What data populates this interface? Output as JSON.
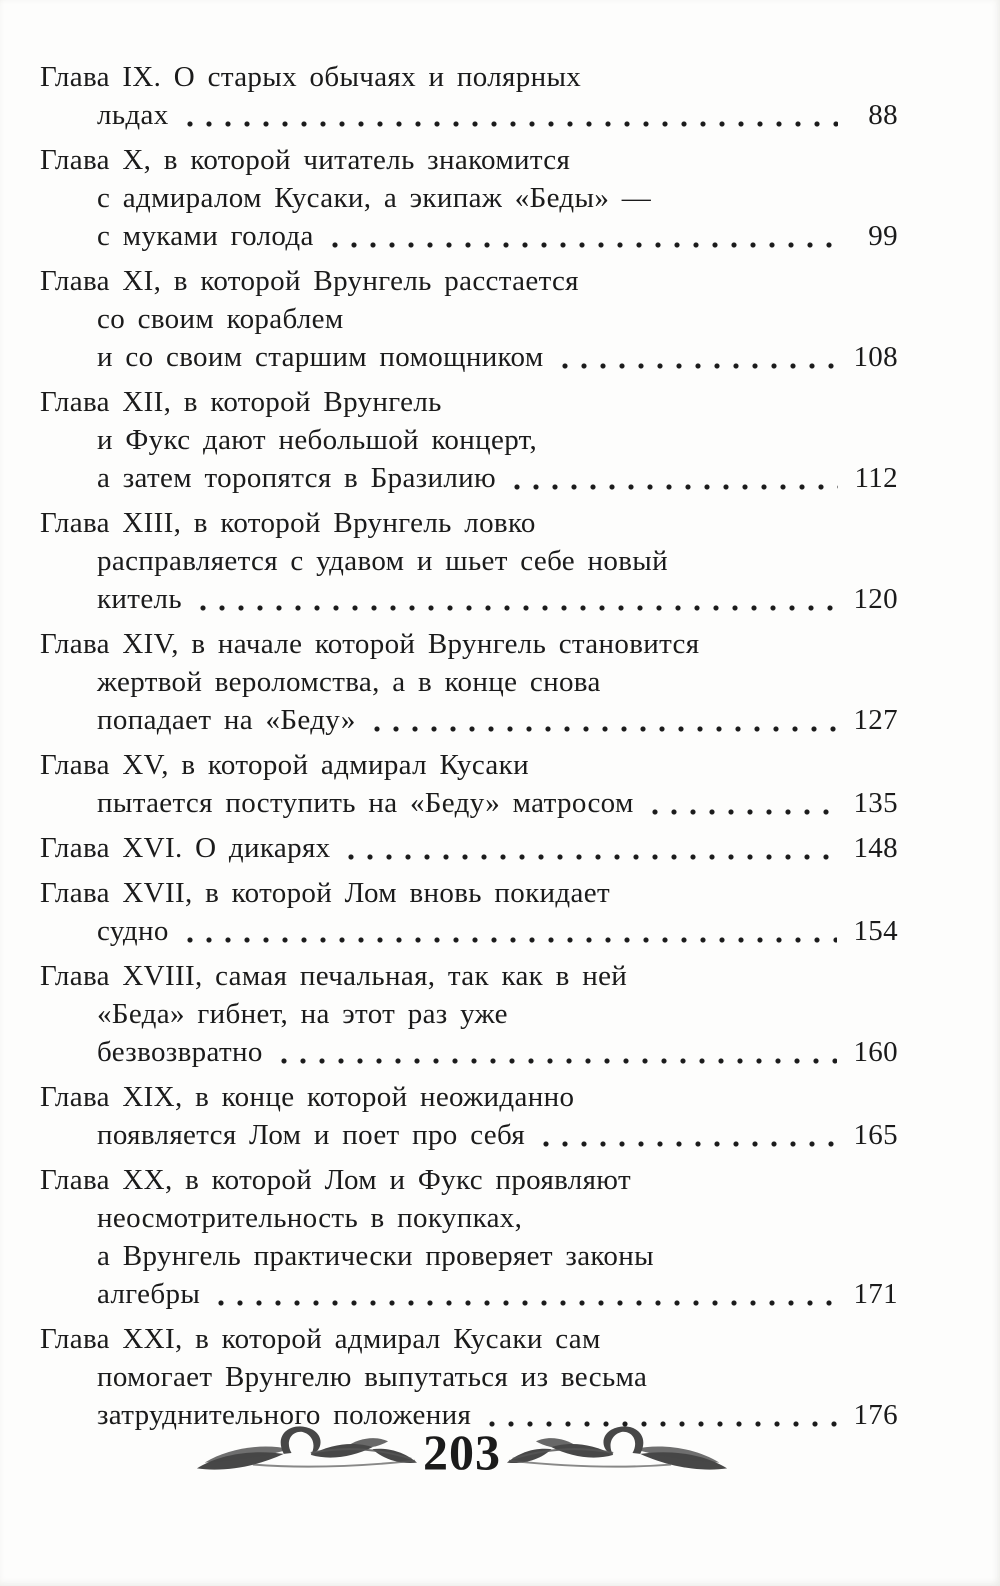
{
  "colors": {
    "ink": "#1b1b1b",
    "ornament": "#474747",
    "paper": "#fdfdfc"
  },
  "toc": {
    "entries": [
      {
        "lines": [
          "Глава IX. О старых обычаях и полярных"
        ],
        "last_line": "льдах",
        "page": "88"
      },
      {
        "lines": [
          "Глава X, в которой читатель знакомится",
          "с адмиралом Кусаки, а экипаж «Беды» —"
        ],
        "last_line": "с муками голода",
        "page": "99"
      },
      {
        "lines": [
          "Глава XI, в которой Врунгель расстается",
          "со своим кораблем"
        ],
        "last_line": "и со своим старшим помощником",
        "page": "108"
      },
      {
        "lines": [
          "Глава XII, в которой Врунгель",
          "и Фукс дают небольшой концерт,"
        ],
        "last_line": "а затем торопятся в Бразилию",
        "page": "112"
      },
      {
        "lines": [
          "Глава XIII, в которой Врунгель ловко",
          "расправляется с удавом и шьет себе новый"
        ],
        "last_line": "китель",
        "page": "120"
      },
      {
        "lines": [
          "Глава XIV, в начале которой Врунгель становится",
          "жертвой вероломства, а в конце снова"
        ],
        "last_line": "попадает на «Беду»",
        "page": "127"
      },
      {
        "lines": [
          "Глава XV, в которой адмирал Кусаки"
        ],
        "last_line": "пытается поступить на «Беду» матросом",
        "page": "135"
      },
      {
        "lines": [],
        "last_line": "Глава XVI. О дикарях",
        "page": "148"
      },
      {
        "lines": [
          "Глава XVII, в которой Лом вновь покидает"
        ],
        "last_line": "судно",
        "page": "154"
      },
      {
        "lines": [
          "Глава XVIII, самая печальная, так как в ней",
          "«Беда» гибнет, на этот раз уже"
        ],
        "last_line": "безвозвратно",
        "page": "160"
      },
      {
        "lines": [
          "Глава XIX, в конце которой неожиданно"
        ],
        "last_line": "появляется Лом и поет про себя",
        "page": "165"
      },
      {
        "lines": [
          "Глава XX, в которой Лом и Фукс проявляют",
          "неосмотрительность в покупках,",
          "а Врунгель практически проверяет законы"
        ],
        "last_line": "алгебры",
        "page": "171"
      },
      {
        "lines": [
          "Глава XXI, в которой адмирал Кусаки сам",
          "помогает Врунгелю выпутаться из весьма"
        ],
        "last_line": "затруднительного положения",
        "page": "176"
      }
    ]
  },
  "footer": {
    "page_number": "203"
  }
}
